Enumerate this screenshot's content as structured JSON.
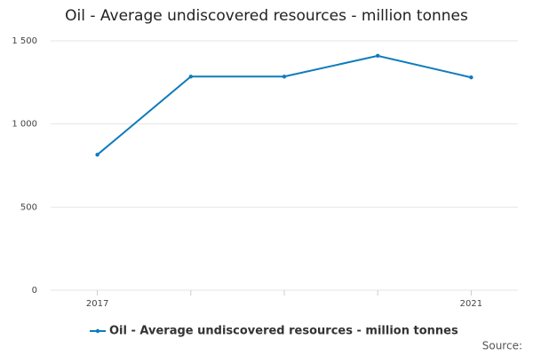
{
  "chart_data": {
    "type": "line",
    "title": "Oil - Average undiscovered resources - million tonnes",
    "categories": [
      "2017",
      null,
      null,
      null,
      "2021"
    ],
    "series": [
      {
        "name": "Oil - Average undiscovered resources - million tonnes",
        "color": "#0f7bbd",
        "values": [
          815,
          1285,
          1285,
          1410,
          1280
        ]
      }
    ],
    "ylim": [
      0,
      1500
    ],
    "yticks": [
      0,
      500,
      {
        "value": 1000,
        "label": "1 000"
      },
      {
        "value": 1500,
        "label": "1 500"
      }
    ],
    "grid": true,
    "source": "Source:"
  }
}
